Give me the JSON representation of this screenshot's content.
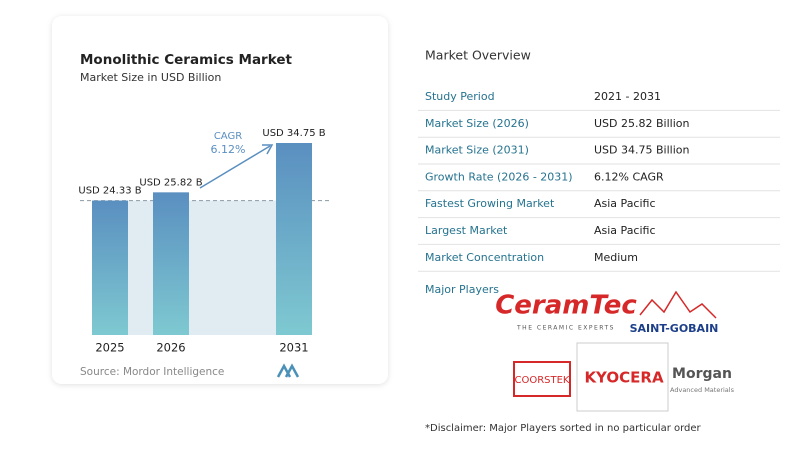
{
  "chart_data": {
    "type": "bar",
    "title": "Monolithic Ceramics Market",
    "subtitle": "Market Size in USD Billion",
    "categories": [
      "2025",
      "2026",
      "2031"
    ],
    "values": [
      24.33,
      25.82,
      34.75
    ],
    "value_labels": [
      "USD 24.33 B",
      "USD 25.82 B",
      "USD 34.75 B"
    ],
    "annotation": {
      "label": "CAGR",
      "value": "6.12%"
    },
    "source": "Source:  Mordor Intelligence"
  },
  "overview": {
    "title": "Market Overview",
    "rows": [
      [
        "Study Period",
        "2021 - 2031"
      ],
      [
        "Market Size (2026)",
        "USD 25.82 Billion"
      ],
      [
        "Market Size (2031)",
        "USD 34.75 Billion"
      ],
      [
        "Growth Rate (2026 - 2031)",
        "6.12% CAGR"
      ],
      [
        "Fastest Growing Market",
        "Asia Pacific"
      ],
      [
        "Largest Market",
        "Asia Pacific"
      ],
      [
        "Market Concentration",
        "Medium"
      ]
    ],
    "players_label": "Major Players",
    "players": {
      "ceramtec": "CeramTec",
      "ceramtec_tag": "THE CERAMIC EXPERTS",
      "saint_gobain": "SAINT-GOBAIN",
      "coorstek": "COORSTEK",
      "kyocera": "KYOCERA",
      "morgan": "Morgan",
      "morgan_tag": "Advanced Materials"
    },
    "disclaimer": "*Disclaimer: Major Players sorted in no particular order"
  }
}
